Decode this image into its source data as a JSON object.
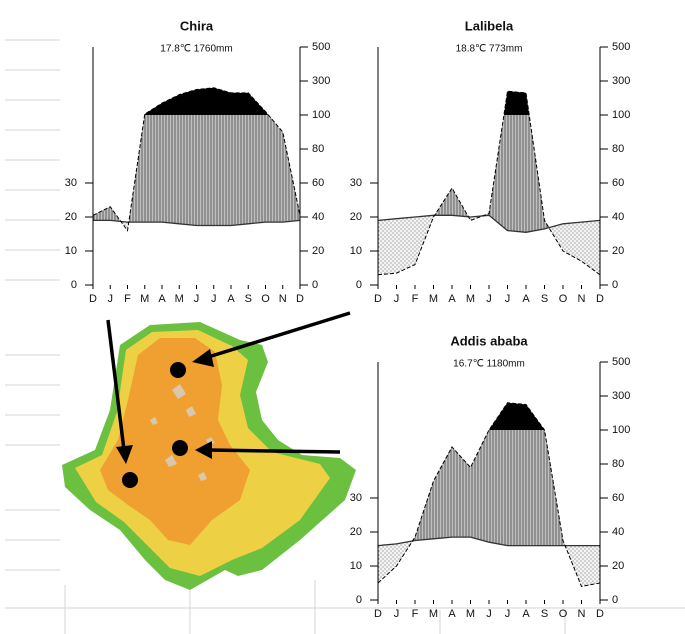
{
  "chart_data": [
    {
      "type": "climate",
      "title": "Chira",
      "subtitle": "17.8℃   1760mm",
      "categories": [
        "D",
        "J",
        "F",
        "M",
        "A",
        "M",
        "J",
        "J",
        "A",
        "S",
        "O",
        "N",
        "D"
      ],
      "series": [
        {
          "color": "#333333",
          "values": [
            19,
            19,
            18.5,
            18.5,
            18.5,
            18,
            17.5,
            17.5,
            17.5,
            18,
            18.5,
            18.5,
            19
          ]
        },
        {
          "color": "#000000",
          "axis": "y2",
          "values": [
            41,
            46,
            32,
            105,
            170,
            220,
            250,
            260,
            230,
            230,
            120,
            90,
            41
          ]
        }
      ],
      "ylim": [
        0,
        70
      ],
      "yticks": [
        0,
        10,
        20,
        30
      ],
      "y2lim": [
        0,
        500
      ],
      "y2ticks": [
        0,
        20,
        40,
        60,
        80,
        100,
        300,
        500
      ],
      "y2_scale_break": 100,
      "y2_break_factor": 0.1
    },
    {
      "type": "climate",
      "title": "Lalibela",
      "subtitle": "18.8℃   773mm",
      "categories": [
        "D",
        "J",
        "F",
        "M",
        "A",
        "M",
        "J",
        "J",
        "A",
        "S",
        "O",
        "N",
        "D"
      ],
      "series": [
        {
          "color": "#333333",
          "values": [
            19,
            19.5,
            20,
            20.5,
            20.5,
            20,
            20.5,
            16,
            15.5,
            16.5,
            18,
            18.5,
            19
          ]
        },
        {
          "color": "#000000",
          "axis": "y2",
          "values": [
            6,
            7,
            12,
            40,
            57,
            38,
            42,
            240,
            230,
            38,
            20,
            14,
            6
          ]
        }
      ],
      "ylim": [
        0,
        70
      ],
      "yticks": [
        0,
        10,
        20,
        30
      ],
      "y2lim": [
        0,
        500
      ],
      "y2ticks": [
        0,
        20,
        40,
        60,
        80,
        100,
        300,
        500
      ],
      "y2_scale_break": 100,
      "y2_break_factor": 0.1
    },
    {
      "type": "climate",
      "title": "Addis ababa",
      "subtitle": "16.7℃   1180mm",
      "categories": [
        "D",
        "J",
        "F",
        "M",
        "A",
        "M",
        "J",
        "J",
        "A",
        "S",
        "O",
        "N",
        "D"
      ],
      "series": [
        {
          "color": "#333333",
          "values": [
            16,
            16.5,
            17.5,
            18,
            18.5,
            18.5,
            17,
            16,
            16,
            16,
            16,
            16,
            16
          ]
        },
        {
          "color": "#000000",
          "axis": "y2",
          "values": [
            10,
            20,
            37,
            70,
            90,
            78,
            100,
            260,
            250,
            100,
            35,
            8,
            10
          ]
        }
      ],
      "ylim": [
        0,
        70
      ],
      "yticks": [
        0,
        10,
        20,
        30
      ],
      "y2lim": [
        0,
        500
      ],
      "y2ticks": [
        0,
        20,
        40,
        60,
        80,
        100,
        300,
        500
      ],
      "y2_scale_break": 100,
      "y2_break_factor": 0.1
    }
  ]
}
